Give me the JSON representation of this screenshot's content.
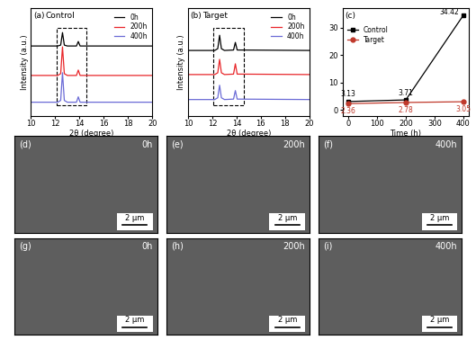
{
  "chart_data": [
    {
      "type": "line",
      "panel": "(a)",
      "title": "Control",
      "x_label": "2θ (degree)",
      "y_label": "Intensity (a.u.)",
      "x": [
        10,
        12.2,
        12.45,
        12.6,
        12.75,
        13.0,
        13.75,
        13.9,
        14.05,
        20
      ],
      "series": [
        {
          "name": "0h",
          "color": "#000000",
          "values": [
            7.8,
            7.8,
            7.9,
            9.3,
            7.9,
            7.8,
            7.8,
            8.3,
            7.8,
            7.8
          ]
        },
        {
          "name": "200h",
          "color": "#e8262a",
          "values": [
            4.5,
            4.5,
            4.7,
            7.7,
            4.7,
            4.5,
            4.5,
            5.1,
            4.5,
            4.5
          ]
        },
        {
          "name": "400h",
          "color": "#6b6bd6",
          "values": [
            1.5,
            1.5,
            1.7,
            4.8,
            1.7,
            1.5,
            1.5,
            2.1,
            1.5,
            1.5
          ]
        }
      ],
      "xlim": [
        10,
        20
      ],
      "xticks": [
        10,
        12,
        14,
        16,
        18,
        20
      ],
      "ylim": [
        0,
        12
      ],
      "tick_labels": "x",
      "legend": "upper right"
    },
    {
      "type": "line",
      "panel": "(b)",
      "title": "Target",
      "x_label": "2θ (degree)",
      "y_label": "Intensity (a.u.)",
      "x": [
        10,
        12.2,
        12.45,
        12.6,
        12.75,
        13.0,
        13.75,
        13.9,
        14.05,
        20
      ],
      "series": [
        {
          "name": "0h",
          "color": "#000000",
          "values": [
            7.3,
            7.3,
            7.5,
            9.0,
            7.5,
            7.3,
            7.35,
            8.2,
            7.35,
            7.3
          ]
        },
        {
          "name": "200h",
          "color": "#e8262a",
          "values": [
            4.6,
            4.6,
            4.8,
            6.3,
            4.8,
            4.6,
            4.65,
            5.8,
            4.65,
            4.6
          ]
        },
        {
          "name": "400h",
          "color": "#6b6bd6",
          "values": [
            1.8,
            1.8,
            2.0,
            3.4,
            2.0,
            1.8,
            1.85,
            2.8,
            1.85,
            1.8
          ]
        }
      ],
      "xlim": [
        10,
        20
      ],
      "xticks": [
        10,
        12,
        14,
        16,
        18,
        20
      ],
      "ylim": [
        0,
        12
      ],
      "tick_labels": "x",
      "legend": "upper right"
    },
    {
      "type": "line",
      "panel": "(c)",
      "x_label": "Time (h)",
      "x": [
        0,
        200,
        400
      ],
      "series": [
        {
          "name": "Control",
          "color": "#000000",
          "marker": "square",
          "values": [
            3.13,
            3.71,
            34.42
          ]
        },
        {
          "name": "Target",
          "color": "#c0392b",
          "marker": "circle",
          "values": [
            2.36,
            2.78,
            3.05
          ]
        }
      ],
      "xlim": [
        -20,
        420
      ],
      "xticks": [
        0,
        100,
        200,
        300,
        400
      ],
      "ylim": [
        -2,
        37
      ],
      "yticks": [
        0,
        10,
        20,
        30
      ],
      "data_labels": true,
      "legend": "upper left"
    }
  ],
  "images": [
    {
      "panel": "(d)",
      "label": "0h",
      "scale_bar": "2 μm"
    },
    {
      "panel": "(e)",
      "label": "200h",
      "scale_bar": "2 μm"
    },
    {
      "panel": "(f)",
      "label": "400h",
      "scale_bar": "2 μm"
    },
    {
      "panel": "(g)",
      "label": "0h",
      "scale_bar": "2 μm"
    },
    {
      "panel": "(h)",
      "label": "200h",
      "scale_bar": "2 μm"
    },
    {
      "panel": "(i)",
      "label": "400h",
      "scale_bar": "2 μm"
    }
  ]
}
